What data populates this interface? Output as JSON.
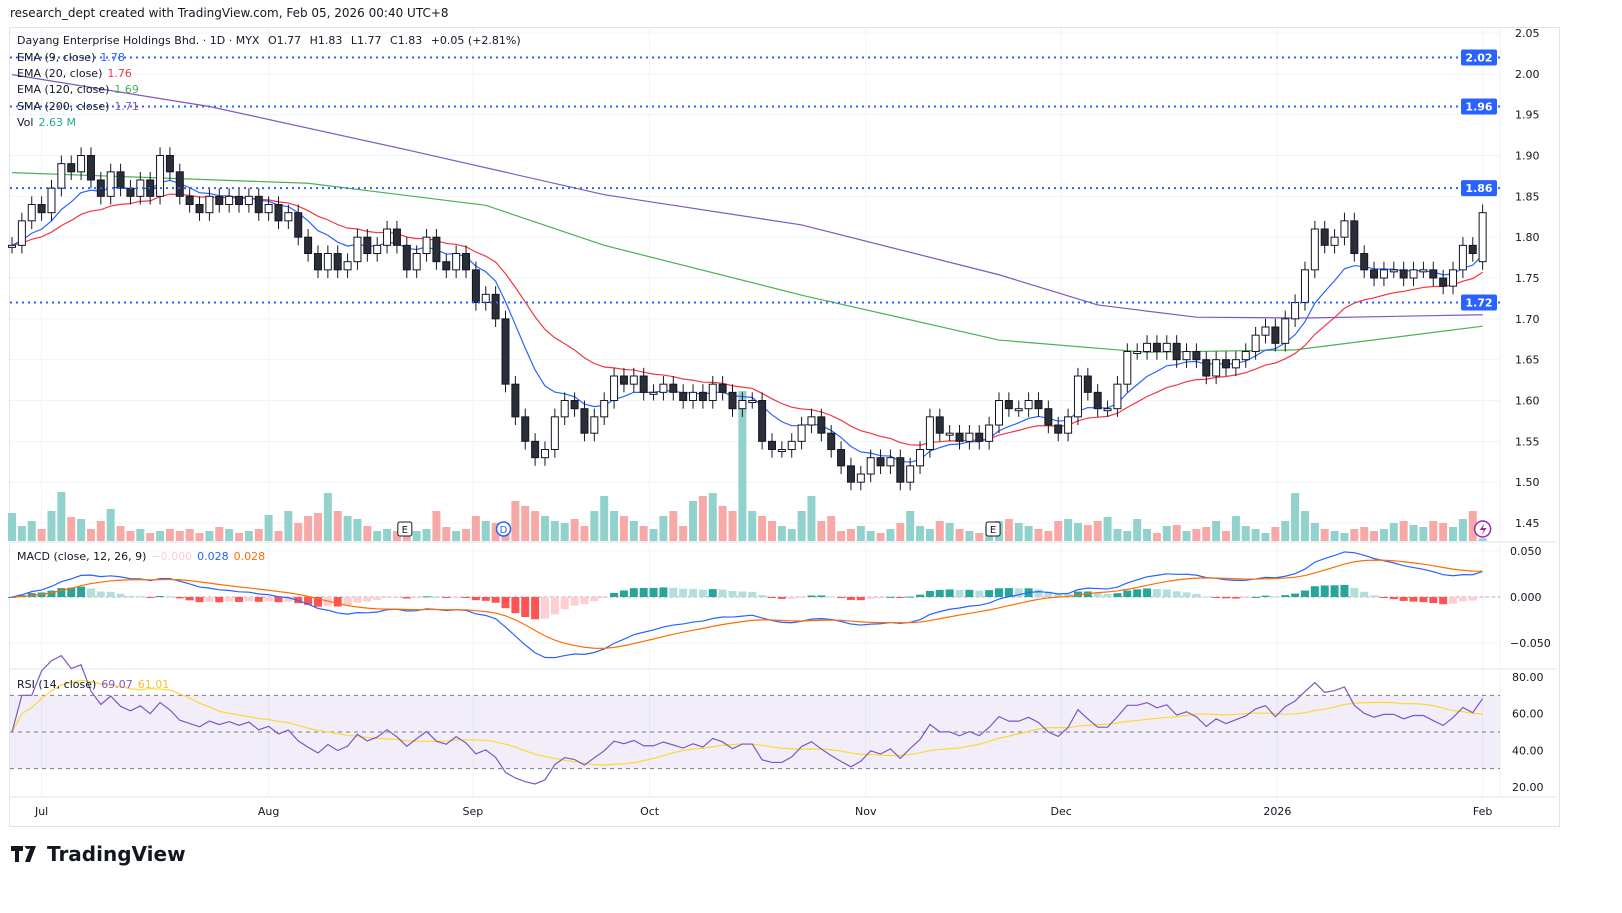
{
  "credit": "research_dept created with TradingView.com, Feb 05, 2026 00:40 UTC+8",
  "legend": {
    "symbol": "Dayang Enterprise Holdings Bhd. · 1D · MYX",
    "open": "O1.77",
    "high": "H1.83",
    "low": "L1.77",
    "close": "C1.83",
    "change": "+0.05 (+2.81%)",
    "ema9": {
      "label": "EMA (9, close)",
      "value": "1.78",
      "color": "#2962ff"
    },
    "ema20": {
      "label": "EMA (20, close)",
      "value": "1.76",
      "color": "#f23645"
    },
    "ema120": {
      "label": "EMA (120, close)",
      "value": "1.69",
      "color": "#4caf50"
    },
    "sma200": {
      "label": "SMA (200, close)",
      "value": "1.71",
      "color": "#7e57c2"
    },
    "vol": {
      "label": "Vol",
      "value": "2.63 M",
      "color": "#26a69a"
    },
    "macd": {
      "label": "MACD (close, 12, 26, 9)",
      "hist": "−0.000",
      "macd": "0.028",
      "signal": "0.028"
    },
    "rsi": {
      "label": "RSI (14, close)",
      "rsi": "69.07",
      "ma": "61.01"
    }
  },
  "logo": "TradingView",
  "chart_data": {
    "type": "candlestick",
    "price_axis": [
      "2.05",
      "2.00",
      "1.95",
      "1.90",
      "1.85",
      "1.80",
      "1.75",
      "1.70",
      "1.65",
      "1.60",
      "1.55",
      "1.50",
      "1.45"
    ],
    "ylim": [
      1.45,
      2.05
    ],
    "horizontal_lines": [
      "2.02",
      "1.96",
      "1.86",
      "1.72"
    ],
    "months": [
      {
        "label": "Jul",
        "bar": 3
      },
      {
        "label": "Aug",
        "bar": 26
      },
      {
        "label": "Sep",
        "bar": 46.7
      },
      {
        "label": "Oct",
        "bar": 64.6
      },
      {
        "label": "Nov",
        "bar": 86.5
      },
      {
        "label": "Dec",
        "bar": 106.3
      },
      {
        "label": "2026",
        "bar": 128.2
      },
      {
        "label": "Feb",
        "bar": 149
      }
    ],
    "markers": [
      {
        "label": "E",
        "bar": 39.8
      },
      {
        "label": "D",
        "bar": 49.8
      },
      {
        "label": "E",
        "bar": 99.4
      }
    ],
    "last_open": 1.77,
    "closes": [
      1.79,
      1.82,
      1.84,
      1.83,
      1.86,
      1.89,
      1.88,
      1.9,
      1.87,
      1.85,
      1.88,
      1.86,
      1.85,
      1.87,
      1.85,
      1.9,
      1.88,
      1.85,
      1.84,
      1.83,
      1.85,
      1.84,
      1.85,
      1.84,
      1.85,
      1.83,
      1.84,
      1.82,
      1.83,
      1.8,
      1.78,
      1.76,
      1.78,
      1.76,
      1.77,
      1.8,
      1.78,
      1.79,
      1.81,
      1.79,
      1.76,
      1.78,
      1.8,
      1.77,
      1.76,
      1.78,
      1.76,
      1.72,
      1.73,
      1.7,
      1.62,
      1.58,
      1.55,
      1.53,
      1.54,
      1.58,
      1.6,
      1.59,
      1.56,
      1.58,
      1.6,
      1.63,
      1.62,
      1.63,
      1.61,
      1.61,
      1.62,
      1.61,
      1.6,
      1.61,
      1.6,
      1.62,
      1.61,
      1.59,
      1.6,
      1.6,
      1.55,
      1.54,
      1.54,
      1.55,
      1.57,
      1.58,
      1.56,
      1.54,
      1.52,
      1.5,
      1.51,
      1.53,
      1.52,
      1.53,
      1.5,
      1.52,
      1.54,
      1.58,
      1.56,
      1.56,
      1.55,
      1.56,
      1.55,
      1.57,
      1.6,
      1.59,
      1.59,
      1.6,
      1.59,
      1.57,
      1.56,
      1.58,
      1.63,
      1.61,
      1.59,
      1.59,
      1.62,
      1.66,
      1.66,
      1.67,
      1.66,
      1.67,
      1.65,
      1.66,
      1.65,
      1.63,
      1.65,
      1.64,
      1.65,
      1.66,
      1.68,
      1.69,
      1.67,
      1.7,
      1.72,
      1.76,
      1.81,
      1.79,
      1.8,
      1.82,
      1.78,
      1.76,
      1.75,
      1.76,
      1.76,
      1.75,
      1.76,
      1.76,
      1.75,
      1.74,
      1.76,
      1.79,
      1.78,
      1.83
    ],
    "volumes_m": [
      28,
      15,
      20,
      12,
      30,
      49,
      24,
      22,
      12,
      20,
      32,
      15,
      10,
      12,
      8,
      10,
      12,
      10,
      12,
      8,
      10,
      14,
      12,
      8,
      10,
      12,
      26,
      10,
      30,
      18,
      25,
      28,
      48,
      30,
      25,
      22,
      15,
      10,
      12,
      10,
      15,
      10,
      12,
      30,
      14,
      10,
      12,
      25,
      20,
      18,
      14,
      40,
      35,
      30,
      25,
      20,
      18,
      22,
      15,
      30,
      45,
      30,
      25,
      20,
      15,
      12,
      25,
      30,
      15,
      40,
      45,
      48,
      35,
      30,
      150,
      30,
      25,
      20,
      15,
      12,
      30,
      45,
      20,
      25,
      10,
      12,
      15,
      10,
      8,
      12,
      18,
      30,
      15,
      12,
      20,
      18,
      12,
      10,
      8,
      15,
      20,
      22,
      18,
      15,
      12,
      10,
      20,
      22,
      18,
      16,
      20,
      24,
      12,
      10,
      22,
      12,
      8,
      15,
      16,
      10,
      12,
      14,
      20,
      10,
      25,
      15,
      12,
      8,
      14,
      20,
      48,
      30,
      18,
      12,
      10,
      8,
      12,
      14,
      10,
      12,
      18,
      20,
      16,
      14,
      20,
      18,
      14,
      22,
      30,
      2.63
    ],
    "ema120_points": [
      [
        0,
        1.879
      ],
      [
        30,
        1.866
      ],
      [
        48,
        1.839
      ],
      [
        60,
        1.79
      ],
      [
        80,
        1.729
      ],
      [
        100,
        1.674
      ],
      [
        115,
        1.659
      ],
      [
        130,
        1.662
      ],
      [
        149,
        1.691
      ]
    ],
    "sma200_points": [
      [
        0,
        1.999
      ],
      [
        20,
        1.96
      ],
      [
        40,
        1.907
      ],
      [
        60,
        1.852
      ],
      [
        80,
        1.815
      ],
      [
        100,
        1.754
      ],
      [
        110,
        1.717
      ],
      [
        120,
        1.702
      ],
      [
        131,
        1.701
      ],
      [
        149,
        1.705
      ]
    ],
    "macd_axis": [
      "0.050",
      "0.000",
      "−0.050"
    ],
    "rsi_axis": [
      "80.00",
      "60.00",
      "40.00",
      "20.00"
    ],
    "colors": {
      "up_vol": "#92d2cc",
      "down_vol": "#f7a9a7",
      "down_body": "#2a2e39",
      "hline": "#2962ff",
      "macd": "#2962ff",
      "signal": "#ff6d00",
      "rsi": "#7e57c2",
      "rsi_ma": "#fdd835"
    }
  }
}
